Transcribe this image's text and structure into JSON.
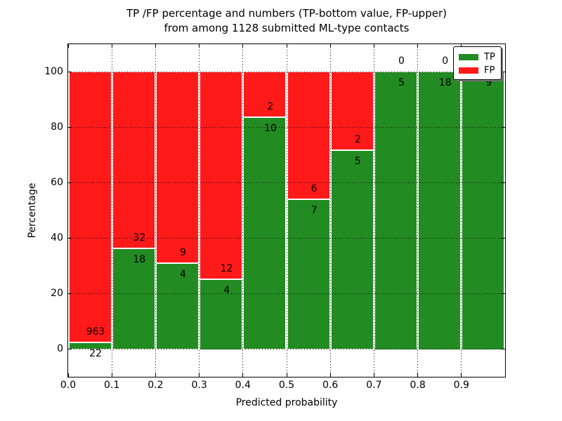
{
  "title": {
    "line1": "TP /FP percentage and numbers (TP-bottom value, FP-upper)",
    "line2": "from among 1128 submitted ML-type contacts"
  },
  "chart_data": {
    "type": "bar",
    "stacked": true,
    "normalized": "each bin scaled so TP+FP = 100%",
    "bins": [
      "0.0-0.1",
      "0.1-0.2",
      "0.2-0.3",
      "0.3-0.4",
      "0.4-0.5",
      "0.5-0.6",
      "0.6-0.7",
      "0.7-0.8",
      "0.8-0.9",
      "0.9-1.0"
    ],
    "series": [
      {
        "name": "TP",
        "color": "#228B22",
        "values": [
          22,
          18,
          4,
          4,
          10,
          7,
          5,
          5,
          18,
          9
        ]
      },
      {
        "name": "FP",
        "color": "#FF1A1A",
        "values": [
          963,
          32,
          9,
          12,
          2,
          6,
          2,
          0,
          0,
          0
        ]
      }
    ],
    "tp_percent": [
      2.2,
      36.0,
      30.8,
      25.0,
      83.3,
      53.8,
      71.4,
      100.0,
      100.0,
      100.0
    ],
    "total_contacts": 1128,
    "xlabel": "Predicted probability",
    "ylabel": "Percentage",
    "xtick_labels": [
      "0.0",
      "0.1",
      "0.2",
      "0.3",
      "0.4",
      "0.5",
      "0.6",
      "0.7",
      "0.8",
      "0.9"
    ],
    "yticks": [
      0,
      20,
      40,
      60,
      80,
      100
    ],
    "ytick_labels": [
      "0",
      "20",
      "40",
      "60",
      "80",
      "100"
    ],
    "xlim": [
      0.0,
      1.0
    ],
    "ylim": [
      -10,
      110
    ],
    "grid": "dotted black, horizontal and vertical at ticks",
    "legend": {
      "position": "upper right",
      "entries": [
        {
          "label": "TP",
          "color": "#228B22"
        },
        {
          "label": "FP",
          "color": "#FF1A1A"
        }
      ]
    }
  },
  "colors": {
    "tp_green": "#228B22",
    "fp_red": "#FF1A1A",
    "background": "#FFFFFF",
    "axis": "#000000"
  }
}
